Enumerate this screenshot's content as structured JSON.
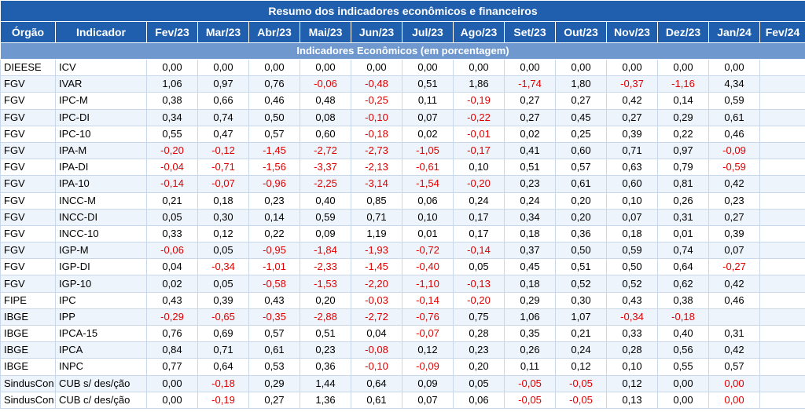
{
  "title": "Resumo dos indicadores econômicos e financeiros",
  "headers": [
    "Órgão",
    "Indicador",
    "Fev/23",
    "Mar/23",
    "Abr/23",
    "Mai/23",
    "Jun/23",
    "Jul/23",
    "Ago/23",
    "Set/23",
    "Out/23",
    "Nov/23",
    "Dez/23",
    "Jan/24",
    "Fev/24"
  ],
  "section_title": "Indicadores Econômicos (em porcentagem)",
  "colors": {
    "header_bg": "#1f5fae",
    "section_bg": "#6f98cf",
    "negative": "#e00000"
  },
  "rows": [
    {
      "org": "DIEESE",
      "ind": "ICV",
      "values": [
        "0,00",
        "0,00",
        "0,00",
        "0,00",
        "0,00",
        "0,00",
        "0,00",
        "0,00",
        "0,00",
        "0,00",
        "0,00",
        "0,00",
        ""
      ]
    },
    {
      "org": "FGV",
      "ind": "IVAR",
      "values": [
        "1,06",
        "0,97",
        "0,76",
        "-0,06",
        "-0,48",
        "0,51",
        "1,86",
        "-1,74",
        "1,80",
        "-0,37",
        "-1,16",
        "4,34",
        ""
      ]
    },
    {
      "org": "FGV",
      "ind": "IPC-M",
      "values": [
        "0,38",
        "0,66",
        "0,46",
        "0,48",
        "-0,25",
        "0,11",
        "-0,19",
        "0,27",
        "0,27",
        "0,42",
        "0,14",
        "0,59",
        ""
      ]
    },
    {
      "org": "FGV",
      "ind": "IPC-DI",
      "values": [
        "0,34",
        "0,74",
        "0,50",
        "0,08",
        "-0,10",
        "0,07",
        "-0,22",
        "0,27",
        "0,45",
        "0,27",
        "0,29",
        "0,61",
        ""
      ]
    },
    {
      "org": "FGV",
      "ind": "IPC-10",
      "values": [
        "0,55",
        "0,47",
        "0,57",
        "0,60",
        "-0,18",
        "0,02",
        "-0,01",
        "0,02",
        "0,25",
        "0,39",
        "0,22",
        "0,46",
        ""
      ]
    },
    {
      "org": "FGV",
      "ind": "IPA-M",
      "values": [
        "-0,20",
        "-0,12",
        "-1,45",
        "-2,72",
        "-2,73",
        "-1,05",
        "-0,17",
        "0,41",
        "0,60",
        "0,71",
        "0,97",
        "-0,09",
        ""
      ]
    },
    {
      "org": "FGV",
      "ind": "IPA-DI",
      "values": [
        "-0,04",
        "-0,71",
        "-1,56",
        "-3,37",
        "-2,13",
        "-0,61",
        "0,10",
        "0,51",
        "0,57",
        "0,63",
        "0,79",
        "-0,59",
        ""
      ]
    },
    {
      "org": "FGV",
      "ind": "IPA-10",
      "values": [
        "-0,14",
        "-0,07",
        "-0,96",
        "-2,25",
        "-3,14",
        "-1,54",
        "-0,20",
        "0,23",
        "0,61",
        "0,60",
        "0,81",
        "0,42",
        ""
      ]
    },
    {
      "org": "FGV",
      "ind": "INCC-M",
      "values": [
        "0,21",
        "0,18",
        "0,23",
        "0,40",
        "0,85",
        "0,06",
        "0,24",
        "0,24",
        "0,20",
        "0,10",
        "0,26",
        "0,23",
        ""
      ]
    },
    {
      "org": "FGV",
      "ind": "INCC-DI",
      "values": [
        "0,05",
        "0,30",
        "0,14",
        "0,59",
        "0,71",
        "0,10",
        "0,17",
        "0,34",
        "0,20",
        "0,07",
        "0,31",
        "0,27",
        ""
      ]
    },
    {
      "org": "FGV",
      "ind": "INCC-10",
      "values": [
        "0,33",
        "0,12",
        "0,22",
        "0,09",
        "1,19",
        "0,01",
        "0,17",
        "0,18",
        "0,36",
        "0,18",
        "0,01",
        "0,39",
        ""
      ]
    },
    {
      "org": "FGV",
      "ind": "IGP-M",
      "values": [
        "-0,06",
        "0,05",
        "-0,95",
        "-1,84",
        "-1,93",
        "-0,72",
        "-0,14",
        "0,37",
        "0,50",
        "0,59",
        "0,74",
        "0,07",
        ""
      ]
    },
    {
      "org": "FGV",
      "ind": "IGP-DI",
      "values": [
        "0,04",
        "-0,34",
        "-1,01",
        "-2,33",
        "-1,45",
        "-0,40",
        "0,05",
        "0,45",
        "0,51",
        "0,50",
        "0,64",
        "-0,27",
        ""
      ]
    },
    {
      "org": "FGV",
      "ind": "IGP-10",
      "values": [
        "0,02",
        "0,05",
        "-0,58",
        "-1,53",
        "-2,20",
        "-1,10",
        "-0,13",
        "0,18",
        "0,52",
        "0,52",
        "0,62",
        "0,42",
        ""
      ]
    },
    {
      "org": "FIPE",
      "ind": "IPC",
      "values": [
        "0,43",
        "0,39",
        "0,43",
        "0,20",
        "-0,03",
        "-0,14",
        "-0,20",
        "0,29",
        "0,30",
        "0,43",
        "0,38",
        "0,46",
        ""
      ]
    },
    {
      "org": "IBGE",
      "ind": "IPP",
      "values": [
        "-0,29",
        "-0,65",
        "-0,35",
        "-2,88",
        "-2,72",
        "-0,76",
        "0,75",
        "1,06",
        "1,07",
        "-0,34",
        "-0,18",
        "",
        ""
      ]
    },
    {
      "org": "IBGE",
      "ind": "IPCA-15",
      "values": [
        "0,76",
        "0,69",
        "0,57",
        "0,51",
        "0,04",
        "-0,07",
        "0,28",
        "0,35",
        "0,21",
        "0,33",
        "0,40",
        "0,31",
        ""
      ]
    },
    {
      "org": "IBGE",
      "ind": "IPCA",
      "values": [
        "0,84",
        "0,71",
        "0,61",
        "0,23",
        "-0,08",
        "0,12",
        "0,23",
        "0,26",
        "0,24",
        "0,28",
        "0,56",
        "0,42",
        ""
      ]
    },
    {
      "org": "IBGE",
      "ind": "INPC",
      "values": [
        "0,77",
        "0,64",
        "0,53",
        "0,36",
        "-0,10",
        "-0,09",
        "0,20",
        "0,11",
        "0,12",
        "0,10",
        "0,55",
        "0,57",
        ""
      ]
    },
    {
      "org": "SindusCon",
      "ind": "CUB s/ des/ção",
      "values": [
        "0,00",
        "-0,18",
        "0,29",
        "1,44",
        "0,64",
        "0,09",
        "0,05",
        "-0,05",
        "-0,05",
        "0,12",
        "0,00",
        "0,00",
        ""
      ],
      "red_zero_last": true
    },
    {
      "org": "SindusCon",
      "ind": "CUB c/ des/ção",
      "values": [
        "0,00",
        "-0,19",
        "0,27",
        "1,36",
        "0,61",
        "0,07",
        "0,06",
        "-0,05",
        "-0,05",
        "0,13",
        "0,00",
        "0,00",
        ""
      ],
      "red_zero_last": true
    }
  ]
}
